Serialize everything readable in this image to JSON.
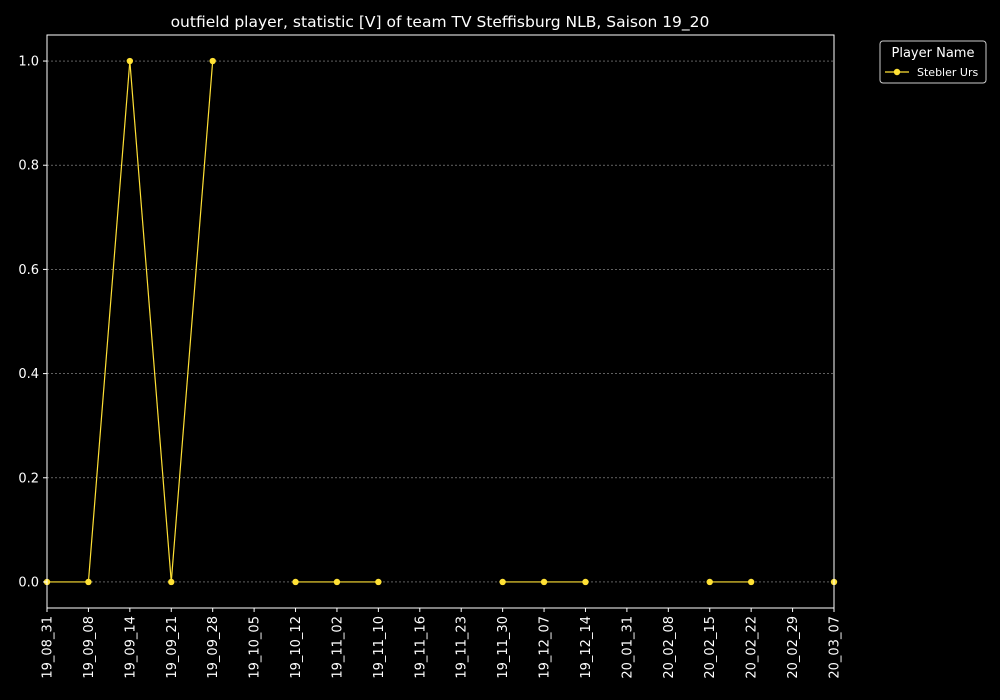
{
  "chart_data": {
    "type": "line",
    "title": "outfield player, statistic [V] of team TV Steffisburg NLB, Saison 19_20",
    "xlabel": "",
    "ylabel": "",
    "categories": [
      "19_08_31",
      "19_09_08",
      "19_09_14",
      "19_09_21",
      "19_09_28",
      "19_10_05",
      "19_10_12",
      "19_11_02",
      "19_11_10",
      "19_11_16",
      "19_11_23",
      "19_11_30",
      "19_12_07",
      "19_12_14",
      "20_01_31",
      "20_02_08",
      "20_02_15",
      "20_02_22",
      "20_02_29",
      "20_03_07"
    ],
    "ylim": [
      -0.05,
      1.05
    ],
    "yticks": [
      0.0,
      0.2,
      0.4,
      0.6,
      0.8,
      1.0
    ],
    "ytick_labels": [
      "0.0",
      "0.2",
      "0.4",
      "0.6",
      "0.8",
      "1.0"
    ],
    "grid": "horizontal",
    "legend_position": "outside-top-right",
    "legend_title": "Player Name",
    "series": [
      {
        "name": "Stebler Urs",
        "color": "#ffe135",
        "values": [
          0,
          0,
          1,
          0,
          1,
          null,
          0,
          0,
          0,
          null,
          null,
          0,
          0,
          0,
          null,
          null,
          0,
          0,
          null,
          0
        ]
      }
    ]
  }
}
